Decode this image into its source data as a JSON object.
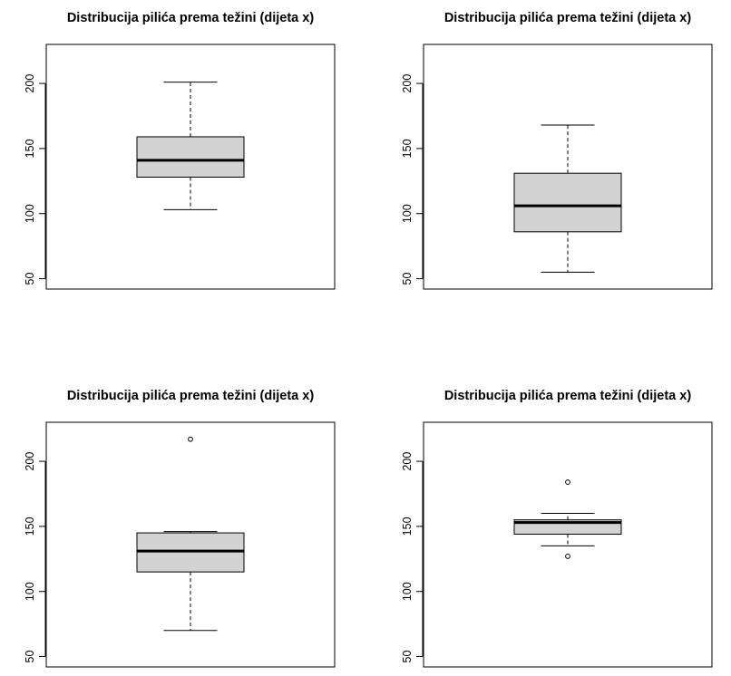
{
  "chart_data": [
    {
      "type": "boxplot",
      "title": "Distribucija pilića prema težini (dijeta x)",
      "ylim": [
        42,
        230
      ],
      "yticks": [
        50,
        100,
        150,
        200
      ],
      "grid": false,
      "box": {
        "min": 103,
        "q1": 128,
        "median": 141,
        "q3": 159,
        "max": 201,
        "outliers": []
      },
      "box_color": "#d3d3d3"
    },
    {
      "type": "boxplot",
      "title": "Distribucija pilića prema težini (dijeta x)",
      "ylim": [
        42,
        230
      ],
      "yticks": [
        50,
        100,
        150,
        200
      ],
      "grid": false,
      "box": {
        "min": 55,
        "q1": 86,
        "median": 106,
        "q3": 131,
        "max": 168,
        "outliers": []
      },
      "box_color": "#d3d3d3"
    },
    {
      "type": "boxplot",
      "title": "Distribucija pilića prema težini (dijeta x)",
      "ylim": [
        42,
        230
      ],
      "yticks": [
        50,
        100,
        150,
        200
      ],
      "grid": false,
      "box": {
        "min": 70,
        "q1": 115,
        "median": 131,
        "q3": 145,
        "max": 146,
        "outliers": [
          217
        ]
      },
      "box_color": "#d3d3d3"
    },
    {
      "type": "boxplot",
      "title": "Distribucija pilića prema težini (dijeta x)",
      "ylim": [
        42,
        230
      ],
      "yticks": [
        50,
        100,
        150,
        200
      ],
      "grid": false,
      "box": {
        "min": 135,
        "q1": 144,
        "median": 153,
        "q3": 155,
        "max": 160,
        "outliers": [
          184,
          127
        ]
      },
      "box_color": "#d3d3d3"
    }
  ]
}
